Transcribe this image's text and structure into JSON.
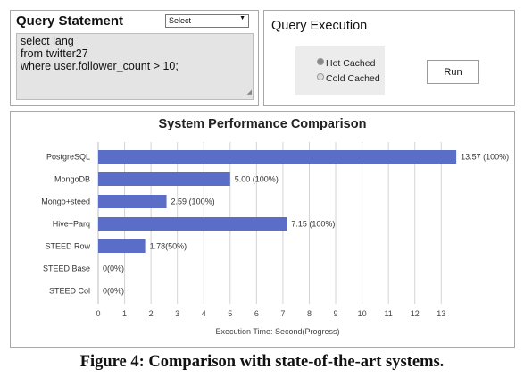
{
  "query_panel": {
    "title": "Query Statement",
    "select_value": "Select",
    "query_lines": [
      "select lang",
      "from twitter27",
      "where user.follower_count > 10;"
    ]
  },
  "exec_panel": {
    "title": "Query Execution",
    "options": [
      "Hot Cached",
      "Cold Cached"
    ],
    "selected_option": "Hot Cached",
    "run_label": "Run"
  },
  "perf_panel": {
    "title": "System Performance Comparison"
  },
  "chart_data": {
    "type": "bar",
    "orientation": "horizontal",
    "title": "System Performance Comparison",
    "categories": [
      "PostgreSQL",
      "MongoDB",
      "Mongo+steed",
      "Hive+Parq",
      "STEED Row",
      "STEED Base",
      "STEED Col"
    ],
    "values": [
      13.57,
      5.0,
      2.59,
      7.15,
      1.78,
      0,
      0
    ],
    "data_labels": [
      "13.57 (100%)",
      "5.00 (100%)",
      "2.59 (100%)",
      "7.15 (100%)",
      "1.78(50%)",
      "0(0%)",
      "0(0%)"
    ],
    "xlim": [
      0,
      13.6
    ],
    "xticks": [
      0,
      1,
      2,
      3,
      4,
      5,
      6,
      7,
      8,
      9,
      10,
      11,
      12,
      13
    ],
    "xlabel": "Execution Time:  Second(Progress)",
    "ylabel": "",
    "grid": "vertical",
    "bar_color": "#5b6ec7"
  },
  "caption": "Figure 4: Comparison with state-of-the-art systems."
}
